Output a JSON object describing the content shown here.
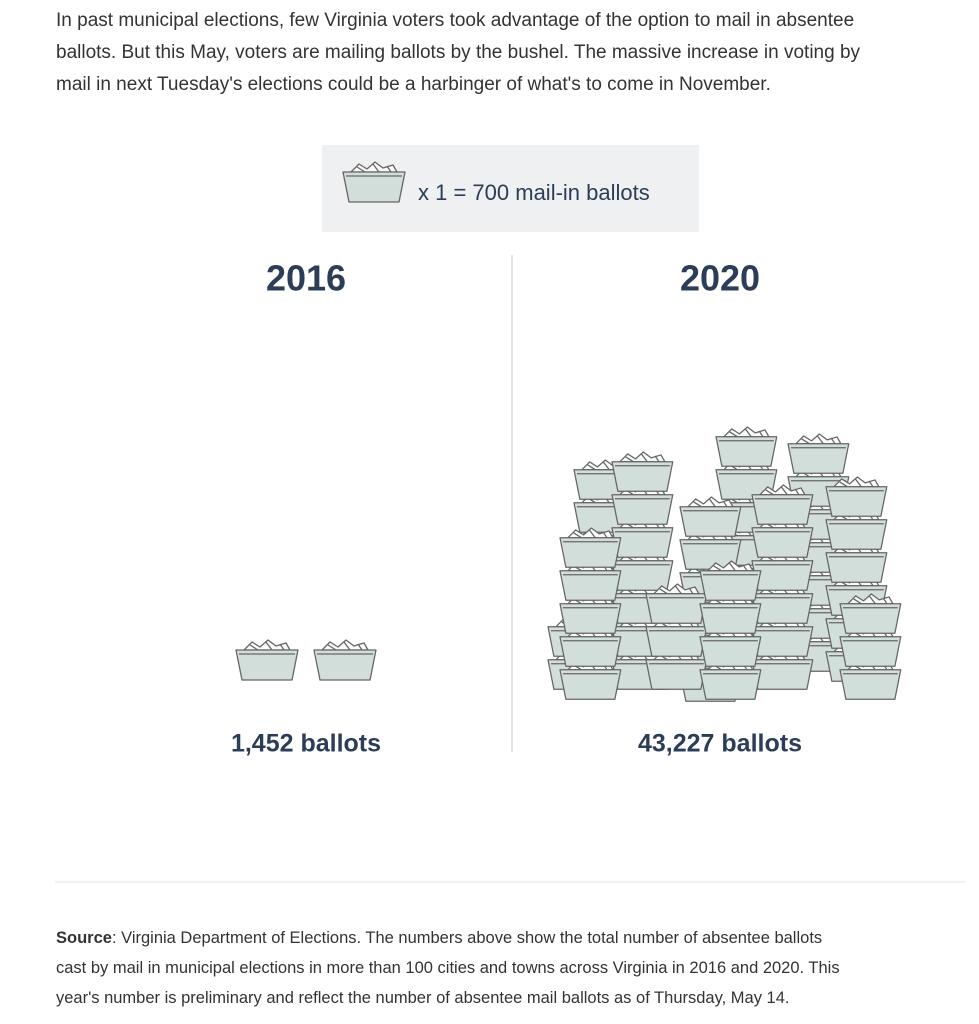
{
  "intro_lines": [
    "In past municipal elections, few Virginia voters took advantage of the option to mail in absentee",
    "ballots. But this May, voters are mailing ballots by the bushel. The massive increase in voting by",
    "mail in next Tuesday's elections could be a harbinger of what's to come in November."
  ],
  "chart_data": {
    "type": "pictograph",
    "unit": 700,
    "unit_label": "x 1 = 700 mail-in ballots",
    "categories": [
      "2016",
      "2020"
    ],
    "values": [
      1452,
      43227
    ],
    "value_labels": [
      "1,452 ballots",
      "43,227 ballots"
    ],
    "color": "#d2ded9"
  },
  "source_label": "Source",
  "source_lines": [
    ": Virginia Department of Elections. The numbers above show the total number of absentee ballots",
    "cast by mail in municipal elections in more than 100 cities and towns across Virginia in 2016 and 2020. This",
    "year's number is preliminary and reflect the number of absentee mail ballots as of Thursday, May 14."
  ]
}
